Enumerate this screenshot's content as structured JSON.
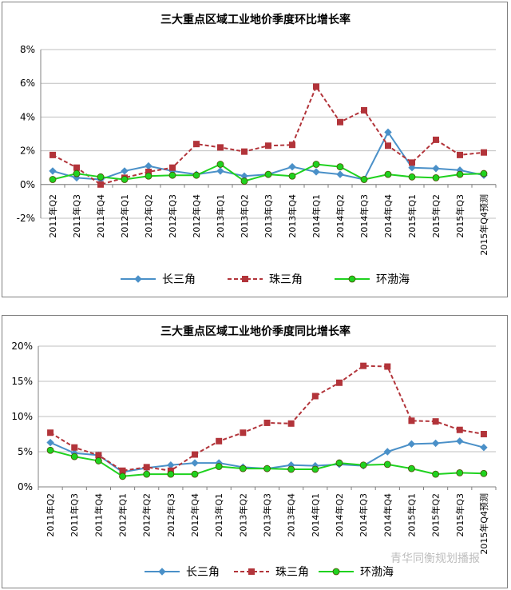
{
  "chart_data": [
    {
      "type": "line",
      "title": "三大重点区域工业地价季度环比增长率",
      "categories": [
        "2011年Q2",
        "2011年Q3",
        "2011年Q4",
        "2012年Q1",
        "2012年Q2",
        "2012年Q3",
        "2012年Q4",
        "2013年Q1",
        "2013年Q2",
        "2013年Q3",
        "2013年Q4",
        "2014年Q1",
        "2014年Q2",
        "2014年Q3",
        "2014年Q4",
        "2015年Q1",
        "2015年Q2",
        "2015年Q3",
        "2015年Q4预测"
      ],
      "y_ticks": [
        "-2%",
        "0%",
        "2%",
        "4%",
        "6%",
        "8%"
      ],
      "ylim": [
        -2,
        8
      ],
      "series": [
        {
          "name": "长三角",
          "color": "#4a90c8",
          "style": "solid",
          "marker": "diamond",
          "values": [
            0.8,
            0.4,
            0.3,
            0.8,
            1.1,
            0.8,
            0.6,
            0.8,
            0.5,
            0.6,
            1.05,
            0.75,
            0.6,
            0.3,
            3.1,
            1.0,
            0.95,
            0.85,
            0.55
          ]
        },
        {
          "name": "珠三角",
          "color": "#b2343a",
          "style": "dashed",
          "marker": "square",
          "values": [
            1.75,
            1.0,
            0.0,
            0.4,
            0.75,
            1.0,
            2.4,
            2.2,
            1.95,
            2.3,
            2.35,
            5.8,
            3.7,
            4.4,
            2.3,
            1.3,
            2.65,
            1.75,
            1.9
          ]
        },
        {
          "name": "环渤海",
          "color": "#1fd21f",
          "style": "solid",
          "marker": "circle",
          "values": [
            0.3,
            0.65,
            0.45,
            0.3,
            0.5,
            0.55,
            0.55,
            1.2,
            0.2,
            0.6,
            0.5,
            1.2,
            1.05,
            0.3,
            0.6,
            0.45,
            0.4,
            0.6,
            0.65
          ]
        }
      ]
    },
    {
      "type": "line",
      "title": "三大重点区域工业地价季度同比增长率",
      "categories": [
        "2011年Q2",
        "2011年Q3",
        "2011年Q4",
        "2012年Q1",
        "2012年Q2",
        "2012年Q3",
        "2012年Q4",
        "2013年Q1",
        "2013年Q2",
        "2013年Q3",
        "2013年Q4",
        "2014年Q1",
        "2014年Q2",
        "2014年Q3",
        "2014年Q4",
        "2015年Q1",
        "2015年Q2",
        "2015年Q3",
        "2015年Q4预测"
      ],
      "y_ticks": [
        "0%",
        "5%",
        "10%",
        "15%",
        "20%"
      ],
      "ylim": [
        0,
        20
      ],
      "series": [
        {
          "name": "长三角",
          "color": "#4a90c8",
          "style": "solid",
          "marker": "diamond",
          "values": [
            6.3,
            4.8,
            4.5,
            2.1,
            2.7,
            3.1,
            3.4,
            3.4,
            2.8,
            2.6,
            3.1,
            3.0,
            3.2,
            3.0,
            5.0,
            6.1,
            6.2,
            6.5,
            5.6
          ]
        },
        {
          "name": "珠三角",
          "color": "#b2343a",
          "style": "dashed",
          "marker": "square",
          "values": [
            7.7,
            5.6,
            4.5,
            2.3,
            2.8,
            2.3,
            4.6,
            6.5,
            7.7,
            9.1,
            9.0,
            12.9,
            14.8,
            17.2,
            17.1,
            9.4,
            9.3,
            8.1,
            7.5
          ]
        },
        {
          "name": "环渤海",
          "color": "#1fd21f",
          "style": "solid",
          "marker": "circle",
          "values": [
            5.2,
            4.3,
            3.7,
            1.5,
            1.8,
            1.8,
            1.8,
            2.9,
            2.6,
            2.6,
            2.5,
            2.5,
            3.4,
            3.1,
            3.2,
            2.6,
            1.8,
            2.0,
            1.9
          ]
        }
      ]
    }
  ],
  "watermark": "青华同衡规划播报",
  "colors": {
    "axis": "#808080",
    "grid": "#bfbfbf"
  }
}
